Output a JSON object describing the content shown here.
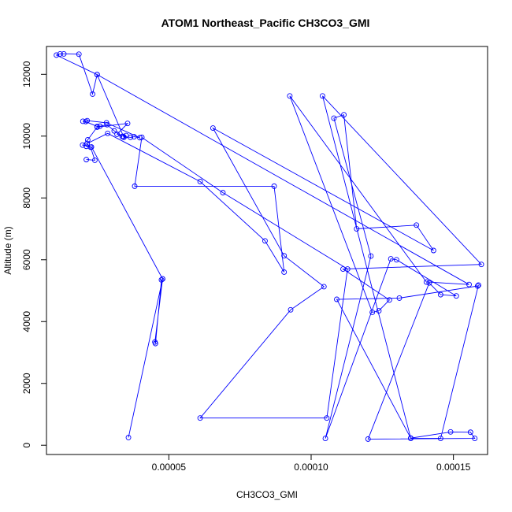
{
  "chart_data": {
    "type": "line",
    "title": "ATOM1 Northeast_Pacific CH3CO3_GMI",
    "xlabel": "CH3CO3_GMI",
    "ylabel": "Altitude (m)",
    "xlim": [
      7e-06,
      0.000162
    ],
    "ylim": [
      -300,
      12900
    ],
    "x_ticks": [
      5e-05,
      0.0001,
      0.00015
    ],
    "x_tick_labels": [
      "0.00005",
      "0.00010",
      "0.00015"
    ],
    "y_ticks": [
      0,
      2000,
      4000,
      6000,
      8000,
      10000,
      12000
    ],
    "y_tick_labels": [
      "0",
      "2000",
      "4000",
      "6000",
      "8000",
      "10000",
      "12000"
    ],
    "grid": false,
    "series_color": "#0000ff",
    "marker": "open-circle",
    "series": [
      {
        "x": [
          3.58e-05,
          4.78e-05,
          4.74e-05,
          4.53e-05,
          4.51e-05,
          4.78e-05,
          2.28e-05,
          1.97e-05,
          2.15e-05,
          2.48e-05,
          3.55e-05,
          3.18e-05,
          3.36e-05,
          3.08e-05,
          2.83e-05,
          2.58e-05,
          2.48e-05,
          2.08e-05,
          1.98e-05,
          2.13e-05,
          2.81e-05,
          3.98e-05,
          3.78e-05,
          3.65e-05,
          3.4e-05,
          3.5e-05,
          3.42e-05,
          2.48e-05,
          2.32e-05,
          1.84e-05,
          1.31e-05,
          1.18e-05,
          1.05e-05,
          2.48e-05,
          0.0001555,
          0.0001405,
          9.25e-05,
          0.0001215,
          0.0001238,
          0.0001275,
          0.0001112,
          0.0001598,
          0.000104,
          0.000135,
          0.0001455,
          0.0001588,
          0.0001585,
          0.000131,
          0.000109,
          0.000135,
          0.000149,
          0.000156,
          0.0001575,
          0.00012,
          0.0001415,
          0.0001455,
          0.000151,
          0.00013,
          0.000128,
          0.000105,
          0.000121,
          0.000108,
          0.0001115,
          0.000116,
          0.000137,
          0.000143,
          6.55e-05,
          9.05e-05,
          0.0001045,
          9.28e-05,
          6.1e-05,
          0.0001055,
          0.0001128,
          6.9e-05,
          4.05e-05,
          3.8e-05,
          8.7e-05,
          9.05e-05,
          8.38e-05,
          6.1e-05,
          2.85e-05,
          2.13e-05,
          2.1e-05,
          2.25e-05,
          2.4e-05,
          2.1e-05
        ],
        "y": [
          250,
          5380,
          5350,
          3290,
          3340,
          5380,
          9650,
          9710,
          9880,
          10290,
          10410,
          10060,
          9990,
          10170,
          10370,
          10320,
          10310,
          10470,
          10480,
          10500,
          10430,
          9950,
          9980,
          9960,
          9990,
          10020,
          9960,
          11990,
          11360,
          12650,
          12660,
          12660,
          12620,
          11990,
          5200,
          5280,
          11300,
          4300,
          4350,
          4700,
          5700,
          5850,
          11300,
          220,
          220,
          5180,
          5150,
          4760,
          4720,
          230,
          430,
          420,
          220,
          200,
          5250,
          4870,
          4830,
          6000,
          6030,
          220,
          6120,
          10580,
          10690,
          7000,
          7120,
          6300,
          10260,
          6130,
          5130,
          4380,
          880,
          880,
          5700,
          8170,
          9960,
          8380,
          8380,
          5600,
          6610,
          8530,
          10090,
          9760,
          9670,
          9640,
          9220,
          9240
        ]
      }
    ]
  }
}
